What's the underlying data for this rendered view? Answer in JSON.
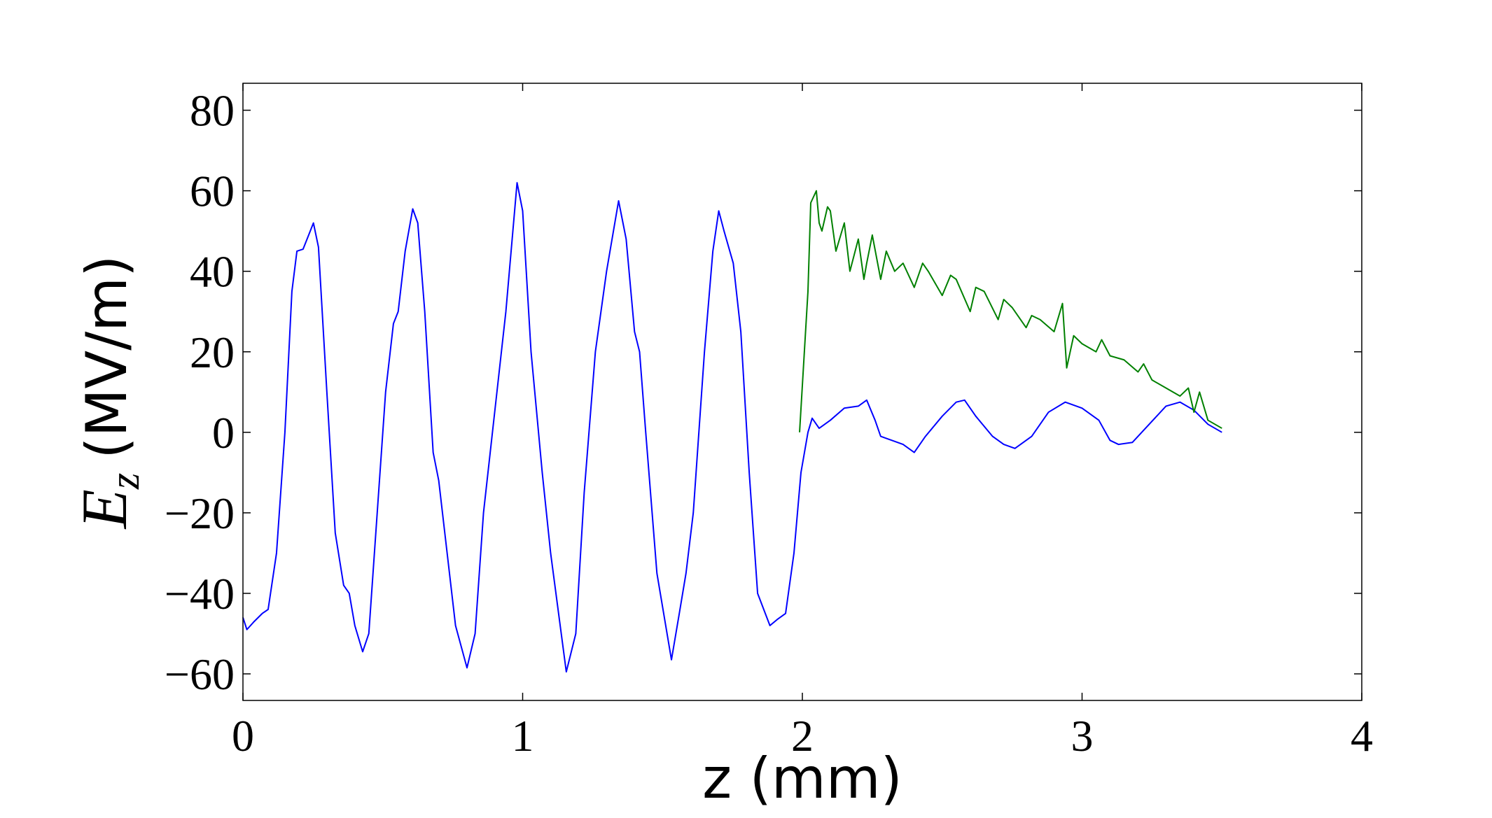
{
  "chart_data": {
    "type": "line",
    "xlabel": "z (mm)",
    "ylabel": {
      "symbol": "E",
      "subscript": "z",
      "unit": "(MV/m)"
    },
    "xlim": [
      0,
      4
    ],
    "ylim": [
      -66.6,
      86.7
    ],
    "xticks": [
      0,
      1,
      2,
      3,
      4
    ],
    "yticks": [
      {
        "value": -60,
        "label": "−60"
      },
      {
        "value": -40,
        "label": "−40"
      },
      {
        "value": -20,
        "label": "−20"
      },
      0,
      20,
      40,
      60,
      80
    ],
    "grid": false,
    "series": [
      {
        "color": "#0000ff",
        "x": [
          0,
          0.014,
          0.04,
          0.069,
          0.09,
          0.12,
          0.15,
          0.175,
          0.193,
          0.215,
          0.235,
          0.252,
          0.27,
          0.3,
          0.33,
          0.36,
          0.38,
          0.4,
          0.428,
          0.45,
          0.48,
          0.51,
          0.538,
          0.555,
          0.58,
          0.607,
          0.625,
          0.65,
          0.68,
          0.7,
          0.73,
          0.76,
          0.801,
          0.83,
          0.86,
          0.9,
          0.94,
          0.98,
          1.0,
          1.03,
          1.07,
          1.1,
          1.156,
          1.19,
          1.22,
          1.26,
          1.3,
          1.343,
          1.37,
          1.4,
          1.418,
          1.44,
          1.48,
          1.532,
          1.56,
          1.584,
          1.61,
          1.65,
          1.68,
          1.701,
          1.72,
          1.753,
          1.78,
          1.81,
          1.84,
          1.884,
          1.91,
          1.94,
          1.97,
          1.995,
          2.02,
          2.035,
          2.06,
          2.1,
          2.15,
          2.2,
          2.23,
          2.26,
          2.28,
          2.32,
          2.36,
          2.4,
          2.44,
          2.5,
          2.55,
          2.58,
          2.62,
          2.68,
          2.72,
          2.76,
          2.82,
          2.88,
          2.94,
          3.0,
          3.06,
          3.1,
          3.13,
          3.18,
          3.24,
          3.3,
          3.35,
          3.4,
          3.45,
          3.5
        ],
        "values": [
          -46,
          -49,
          -47,
          -45,
          -44,
          -30,
          0,
          35,
          45,
          45.5,
          49,
          52,
          46,
          10,
          -25,
          -38,
          -40,
          -48,
          -54.5,
          -50,
          -20,
          10,
          27,
          30,
          45,
          55.5,
          52,
          30,
          -5,
          -12,
          -30,
          -48,
          -58.5,
          -50,
          -20,
          5,
          30,
          62,
          55,
          20,
          -10,
          -30,
          -59.5,
          -50,
          -15,
          20,
          40,
          57.5,
          48,
          25,
          20,
          0,
          -35,
          -56.5,
          -45,
          -35,
          -20,
          20,
          45,
          55,
          50,
          42,
          25,
          -10,
          -40,
          -48,
          -46.5,
          -45,
          -30,
          -10,
          0,
          3.5,
          1,
          3,
          6,
          6.5,
          8,
          3,
          -1,
          -2,
          -3,
          -5,
          -1,
          4,
          7.5,
          8,
          4,
          -1,
          -3,
          -4,
          -1,
          5,
          7.5,
          6,
          3,
          -2,
          -3,
          -2.5,
          2,
          6.5,
          7.5,
          5.5,
          2,
          0
        ]
      },
      {
        "color": "#008000",
        "x": [
          1.99,
          2.02,
          2.03,
          2.05,
          2.06,
          2.07,
          2.09,
          2.1,
          2.12,
          2.15,
          2.17,
          2.2,
          2.22,
          2.23,
          2.25,
          2.28,
          2.3,
          2.33,
          2.36,
          2.4,
          2.43,
          2.45,
          2.5,
          2.53,
          2.55,
          2.6,
          2.62,
          2.65,
          2.7,
          2.72,
          2.75,
          2.8,
          2.82,
          2.85,
          2.9,
          2.93,
          2.945,
          2.97,
          3.0,
          3.05,
          3.07,
          3.1,
          3.15,
          3.2,
          3.22,
          3.25,
          3.3,
          3.35,
          3.38,
          3.4,
          3.42,
          3.45,
          3.5
        ],
        "values": [
          0,
          35,
          57,
          60,
          52,
          50,
          56,
          55,
          45,
          52,
          40,
          48,
          38,
          42,
          49,
          38,
          45,
          40,
          42,
          36,
          42,
          40,
          34,
          39,
          38,
          30,
          36,
          35,
          28,
          33,
          31,
          26,
          29,
          28,
          25,
          32,
          16,
          24,
          22,
          20,
          23,
          19,
          18,
          15,
          17,
          13,
          11,
          9,
          11,
          5,
          10,
          3,
          1
        ]
      }
    ]
  }
}
